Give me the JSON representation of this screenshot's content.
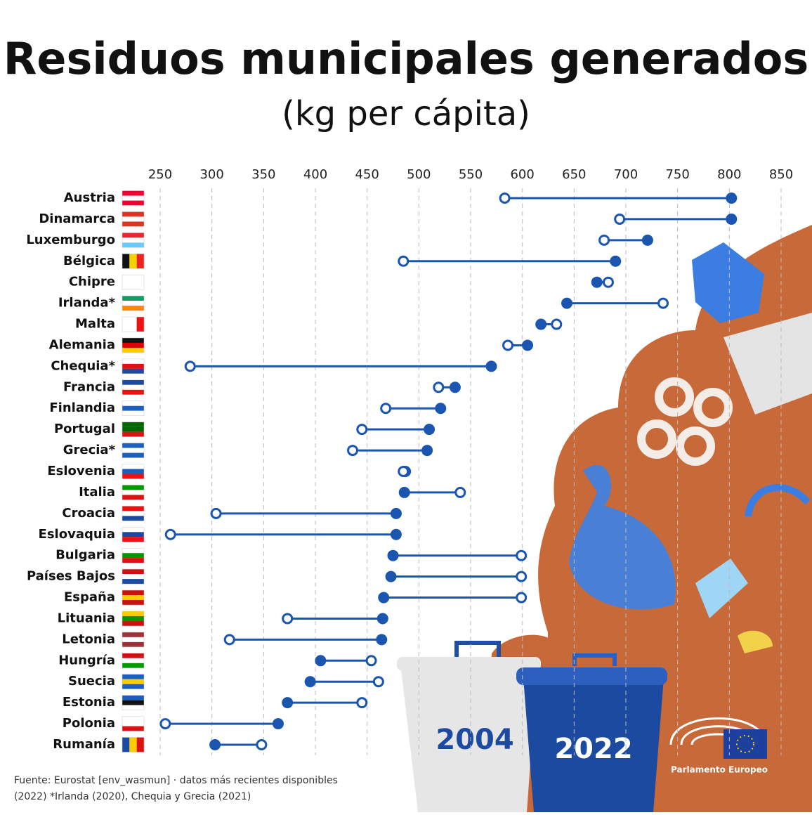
{
  "chart_data": {
    "type": "dumbbell",
    "title": "Residuos municipales generados",
    "subtitle": "(kg per cápita)",
    "categories": [
      "Austria",
      "Dinamarca",
      "Luxemburgo",
      "Bélgica",
      "Chipre",
      "Irlanda*",
      "Malta",
      "Alemania",
      "Chequia*",
      "Francia",
      "Finlandia",
      "Portugal",
      "Grecia*",
      "Eslovenia",
      "Italia",
      "Croacia",
      "Eslovaquia",
      "Bulgaria",
      "Países Bajos",
      "España",
      "Lituania",
      "Letonia",
      "Hungría",
      "Suecia",
      "Estonia",
      "Polonia",
      "Rumanía"
    ],
    "series": [
      {
        "name": "2004",
        "color": "#1a56b0",
        "values": [
          583,
          694,
          679,
          485,
          683,
          736,
          633,
          586,
          279,
          519,
          468,
          445,
          436,
          485,
          540,
          304,
          260,
          599,
          599,
          599,
          373,
          317,
          454,
          461,
          445,
          255,
          348
        ]
      },
      {
        "name": "2022",
        "color": "#1a56b0",
        "values": [
          802,
          802,
          721,
          690,
          672,
          643,
          618,
          605,
          570,
          535,
          521,
          510,
          508,
          487,
          486,
          478,
          478,
          475,
          473,
          466,
          465,
          464,
          405,
          395,
          373,
          364,
          303
        ]
      }
    ],
    "xlim": [
      250,
      850
    ],
    "xticks": [
      250,
      300,
      350,
      400,
      450,
      500,
      550,
      600,
      650,
      700,
      750,
      800,
      850
    ],
    "grid": true,
    "source": [
      "Fuente: Eurostat [env_wasmun] · datos más recientes disponibles",
      "(2022) *Irlanda (2020), Chequia y Grecia (2021)"
    ],
    "logo": "Parlamento Europeo"
  }
}
